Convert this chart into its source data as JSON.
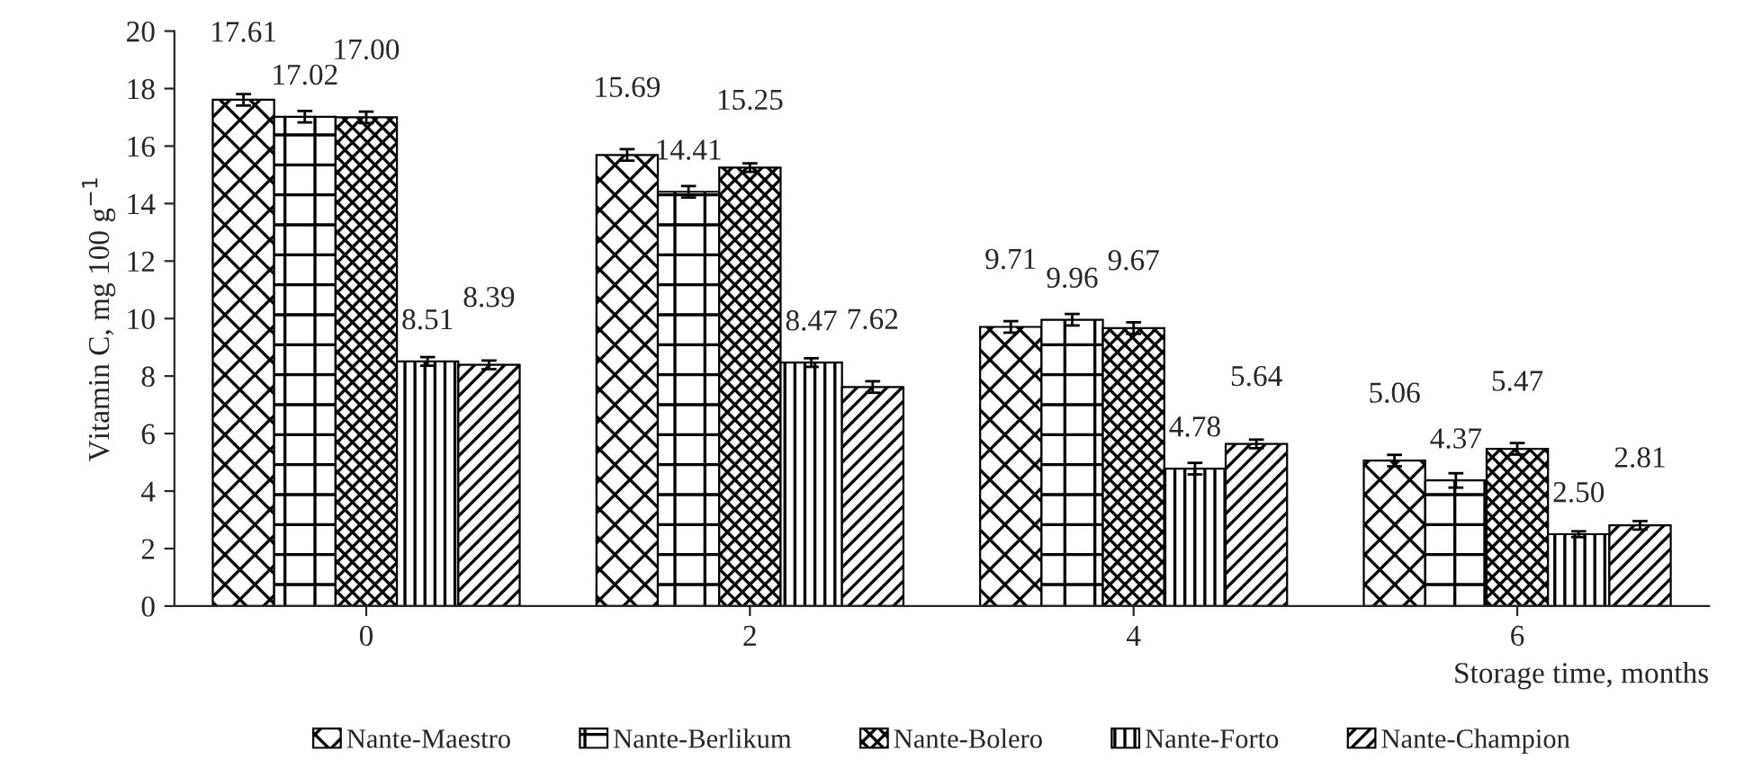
{
  "chart_data": {
    "type": "bar",
    "xlabel": "Storage time, months",
    "ylabel": "Vitamin C, mg 100 g$^{−1}$",
    "categories": [
      "0",
      "2",
      "4",
      "6"
    ],
    "series": [
      {
        "name": "Nante-Maestro",
        "color": "#000000",
        "values": [
          17.61,
          15.69,
          9.71,
          5.06
        ],
        "errors": [
          0.2,
          0.2,
          0.2,
          0.2
        ],
        "value_labels": [
          "17.61",
          "15.69",
          "9.71",
          "5.06"
        ]
      },
      {
        "name": "Nante-Berlikum",
        "color": "#000000",
        "values": [
          17.02,
          14.41,
          9.96,
          4.37
        ],
        "errors": [
          0.2,
          0.2,
          0.2,
          0.25
        ],
        "value_labels": [
          "17.02",
          "14.41",
          "9.96",
          "4.37"
        ]
      },
      {
        "name": "Nante-Bolero",
        "color": "#000000",
        "values": [
          17.0,
          15.25,
          9.67,
          5.47
        ],
        "errors": [
          0.2,
          0.15,
          0.2,
          0.2
        ],
        "value_labels": [
          "17.00",
          "15.25",
          "9.67",
          "5.47"
        ]
      },
      {
        "name": "Nante-Forto",
        "color": "#000000",
        "values": [
          8.51,
          8.47,
          4.78,
          2.5
        ],
        "errors": [
          0.15,
          0.15,
          0.2,
          0.1
        ],
        "value_labels": [
          "8.51",
          "8.47",
          "4.78",
          "2.50"
        ]
      },
      {
        "name": "Nante-Champion",
        "color": "#000000",
        "values": [
          8.39,
          7.62,
          5.64,
          2.81
        ],
        "errors": [
          0.15,
          0.2,
          0.15,
          0.15
        ],
        "value_labels": [
          "8.39",
          "7.62",
          "5.64",
          "2.81"
        ]
      }
    ],
    "ylim": [
      0,
      20
    ],
    "yticks": [
      0,
      2,
      4,
      6,
      8,
      10,
      12,
      14,
      16,
      18,
      20
    ],
    "grid": false,
    "legend": "bottom"
  }
}
